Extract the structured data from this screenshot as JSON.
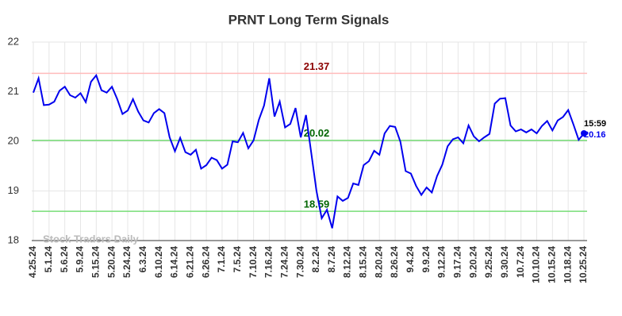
{
  "chart_data": {
    "type": "line",
    "title": "PRNT Long Term Signals",
    "categories": [
      "4.25.24",
      null,
      null,
      "5.1.24",
      null,
      null,
      "5.6.24",
      null,
      null,
      "5.9.24",
      null,
      null,
      "5.15.24",
      null,
      null,
      "5.20.24",
      null,
      null,
      "5.24.24",
      null,
      null,
      "6.3.24",
      null,
      null,
      "6.10.24",
      null,
      null,
      "6.14.24",
      null,
      null,
      "6.21.24",
      null,
      null,
      "6.26.24",
      null,
      null,
      "7.1.24",
      null,
      null,
      "7.5.24",
      null,
      null,
      "7.10.24",
      null,
      null,
      "7.16.24",
      null,
      null,
      "7.24.24",
      null,
      null,
      "7.30.24",
      null,
      null,
      "8.2.24",
      null,
      null,
      "8.7.24",
      null,
      null,
      "8.12.24",
      null,
      null,
      "8.15.24",
      null,
      null,
      "8.20.24",
      null,
      null,
      "8.26.24",
      null,
      null,
      "9.4.24",
      null,
      null,
      "9.9.24",
      null,
      null,
      "9.12.24",
      null,
      null,
      "9.17.24",
      null,
      null,
      "9.20.24",
      null,
      null,
      "9.25.24",
      null,
      null,
      "9.30.24",
      null,
      null,
      "10.7.24",
      null,
      null,
      "10.10.24",
      null,
      null,
      "10.15.24",
      null,
      null,
      "10.18.24",
      null,
      null,
      "10.25.24"
    ],
    "series": [
      {
        "name": "PRNT",
        "color": "#0000ee",
        "values": [
          20.98,
          21.27,
          20.73,
          20.74,
          20.8,
          21.02,
          21.1,
          20.93,
          20.88,
          20.97,
          20.79,
          21.2,
          21.33,
          21.03,
          20.98,
          21.1,
          20.85,
          20.55,
          20.62,
          20.85,
          20.6,
          20.42,
          20.38,
          20.57,
          20.65,
          20.57,
          20.08,
          19.8,
          20.07,
          19.78,
          19.73,
          19.83,
          19.45,
          19.52,
          19.67,
          19.62,
          19.45,
          19.53,
          20.0,
          19.98,
          20.17,
          19.86,
          20.02,
          20.43,
          20.72,
          21.27,
          20.5,
          20.8,
          20.28,
          20.35,
          20.67,
          20.08,
          20.53,
          19.77,
          19.0,
          18.45,
          18.62,
          18.25,
          18.89,
          18.8,
          18.86,
          19.15,
          19.12,
          19.52,
          19.6,
          19.81,
          19.73,
          20.16,
          20.31,
          20.29,
          19.99,
          19.4,
          19.35,
          19.1,
          18.92,
          19.07,
          18.97,
          19.3,
          19.53,
          19.9,
          20.04,
          20.08,
          19.96,
          20.32,
          20.1,
          20.0,
          20.08,
          20.15,
          20.76,
          20.86,
          20.87,
          20.32,
          20.2,
          20.24,
          20.18,
          20.24,
          20.16,
          20.31,
          20.41,
          20.22,
          20.42,
          20.49,
          20.63,
          20.34,
          20.03,
          20.16
        ]
      }
    ],
    "hlines": [
      {
        "value": 21.37,
        "color": "#ffbbbb",
        "label_color": "#8b0000"
      },
      {
        "value": 20.02,
        "color": "#77dd77",
        "label_color": "#006400"
      },
      {
        "value": 18.59,
        "color": "#77dd77",
        "label_color": "#006400"
      }
    ],
    "last_time": "15:59",
    "watermark": "Stock Traders Daily",
    "ylim": [
      18,
      22
    ],
    "yticks": [
      18,
      19,
      20,
      21,
      22
    ],
    "grid": true
  }
}
